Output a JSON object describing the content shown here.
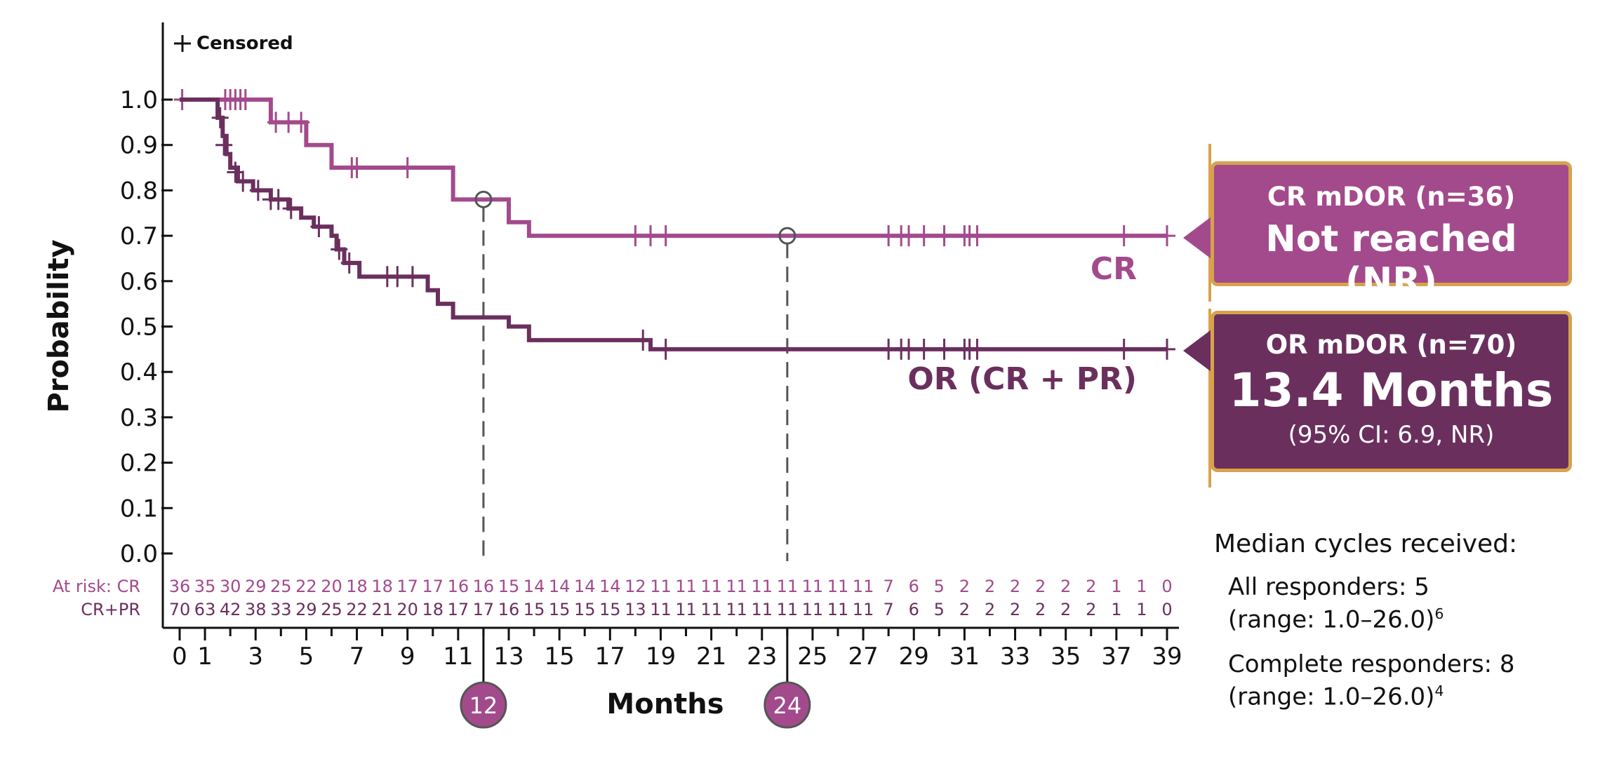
{
  "chart_data": {
    "type": "line",
    "ylabel": "Probability",
    "xlabel": "Months",
    "ylim": [
      0.0,
      1.0
    ],
    "xlim": [
      0,
      39
    ],
    "y_ticks": [
      "0.0",
      "0.1",
      "0.2",
      "0.3",
      "0.4",
      "0.5",
      "0.6",
      "0.7",
      "0.8",
      "0.9",
      "1.0"
    ],
    "x_ticks": [
      "0",
      "1",
      "3",
      "5",
      "7",
      "9",
      "11",
      "13",
      "15",
      "17",
      "19",
      "21",
      "23",
      "25",
      "27",
      "29",
      "31",
      "33",
      "35",
      "37",
      "39"
    ],
    "legend": "top-left",
    "censored_label": "Censored",
    "series": [
      {
        "name": "CR",
        "color": "#a34a8c",
        "steps": [
          [
            0,
            1.0
          ],
          [
            3.6,
            0.95
          ],
          [
            5.0,
            0.9
          ],
          [
            6.0,
            0.85
          ],
          [
            10.8,
            0.78
          ],
          [
            13.0,
            0.73
          ],
          [
            13.8,
            0.7
          ],
          [
            39,
            0.7
          ]
        ],
        "censored": [
          [
            0.1,
            1.0
          ],
          [
            1.8,
            1.0
          ],
          [
            2.0,
            1.0
          ],
          [
            2.2,
            1.0
          ],
          [
            2.4,
            1.0
          ],
          [
            2.6,
            1.0
          ],
          [
            3.8,
            0.95
          ],
          [
            4.3,
            0.95
          ],
          [
            4.8,
            0.95
          ],
          [
            6.8,
            0.85
          ],
          [
            7.0,
            0.85
          ],
          [
            9.0,
            0.85
          ],
          [
            18.0,
            0.7
          ],
          [
            18.6,
            0.7
          ],
          [
            19.2,
            0.7
          ],
          [
            28.0,
            0.7
          ],
          [
            28.5,
            0.7
          ],
          [
            28.8,
            0.7
          ],
          [
            29.4,
            0.7
          ],
          [
            30.2,
            0.7
          ],
          [
            31.0,
            0.7
          ],
          [
            31.2,
            0.7
          ],
          [
            31.5,
            0.7
          ],
          [
            37.3,
            0.7
          ],
          [
            39.0,
            0.7
          ]
        ]
      },
      {
        "name": "OR (CR + PR)",
        "color": "#6b2f5e",
        "steps": [
          [
            0,
            1.0
          ],
          [
            1.5,
            0.96
          ],
          [
            1.7,
            0.92
          ],
          [
            1.85,
            0.88
          ],
          [
            2.0,
            0.85
          ],
          [
            2.3,
            0.82
          ],
          [
            2.9,
            0.8
          ],
          [
            3.6,
            0.78
          ],
          [
            4.3,
            0.76
          ],
          [
            4.8,
            0.74
          ],
          [
            5.3,
            0.72
          ],
          [
            6.0,
            0.7
          ],
          [
            6.2,
            0.67
          ],
          [
            6.5,
            0.64
          ],
          [
            7.1,
            0.61
          ],
          [
            9.8,
            0.58
          ],
          [
            10.2,
            0.55
          ],
          [
            10.8,
            0.52
          ],
          [
            13.0,
            0.5
          ],
          [
            13.8,
            0.47
          ],
          [
            18.6,
            0.45
          ],
          [
            39,
            0.45
          ]
        ],
        "censored": [
          [
            1.6,
            0.96
          ],
          [
            1.75,
            0.9
          ],
          [
            2.2,
            0.84
          ],
          [
            2.5,
            0.82
          ],
          [
            3.1,
            0.8
          ],
          [
            3.6,
            0.78
          ],
          [
            3.9,
            0.78
          ],
          [
            4.4,
            0.76
          ],
          [
            5.5,
            0.72
          ],
          [
            6.3,
            0.67
          ],
          [
            6.7,
            0.64
          ],
          [
            8.2,
            0.61
          ],
          [
            8.6,
            0.61
          ],
          [
            9.2,
            0.61
          ],
          [
            18.3,
            0.47
          ],
          [
            19.2,
            0.45
          ],
          [
            28.0,
            0.45
          ],
          [
            28.5,
            0.45
          ],
          [
            28.8,
            0.45
          ],
          [
            29.4,
            0.45
          ],
          [
            30.2,
            0.45
          ],
          [
            31.0,
            0.45
          ],
          [
            31.2,
            0.45
          ],
          [
            31.5,
            0.45
          ],
          [
            37.3,
            0.45
          ],
          [
            39.0,
            0.45
          ]
        ]
      }
    ],
    "markers": [
      {
        "x": 12,
        "y": 0.78,
        "label": "12"
      },
      {
        "x": 24,
        "y": 0.7,
        "label": "24"
      }
    ],
    "curve_labels": {
      "cr": "CR",
      "or": "OR (CR + PR)"
    },
    "at_risk": {
      "cr_label": "At risk: CR",
      "or_label": "CR+PR",
      "x": [
        0,
        1,
        2,
        3,
        4,
        5,
        6,
        7,
        8,
        9,
        10,
        11,
        12,
        13,
        14,
        15,
        16,
        17,
        18,
        19,
        20,
        21,
        22,
        23,
        24,
        25,
        26,
        27,
        28,
        29,
        30,
        31,
        32,
        33,
        34,
        35,
        36,
        37,
        38,
        39
      ],
      "cr": [
        "36",
        "35",
        "30",
        "29",
        "25",
        "22",
        "20",
        "18",
        "18",
        "17",
        "17",
        "16",
        "16",
        "15",
        "14",
        "14",
        "14",
        "14",
        "12",
        "11",
        "11",
        "11",
        "11",
        "11",
        "11",
        "11",
        "11",
        "11",
        "7",
        "6",
        "5",
        "2",
        "2",
        "2",
        "2",
        "2",
        "2",
        "1",
        "1",
        "0"
      ],
      "or": [
        "70",
        "63",
        "42",
        "38",
        "33",
        "29",
        "25",
        "22",
        "21",
        "20",
        "18",
        "17",
        "17",
        "16",
        "15",
        "15",
        "15",
        "15",
        "13",
        "11",
        "11",
        "11",
        "11",
        "11",
        "11",
        "11",
        "11",
        "11",
        "7",
        "6",
        "5",
        "2",
        "2",
        "2",
        "2",
        "2",
        "2",
        "1",
        "1",
        "0"
      ]
    }
  },
  "callouts": {
    "cr": {
      "title": "CR mDOR (n=36)",
      "value": "Not reached (NR)"
    },
    "or": {
      "title": "OR mDOR (n=70)",
      "value": "13.4 Months",
      "ci": "(95% CI: 6.9, NR)"
    }
  },
  "notes": {
    "heading": "Median cycles received:",
    "all_label": "All responders: 5",
    "all_range": "(range: 1.0–26.0)",
    "all_ref": "6",
    "complete_label": "Complete responders: 8",
    "complete_range": "(range: 1.0–26.0)",
    "complete_ref": "4"
  }
}
